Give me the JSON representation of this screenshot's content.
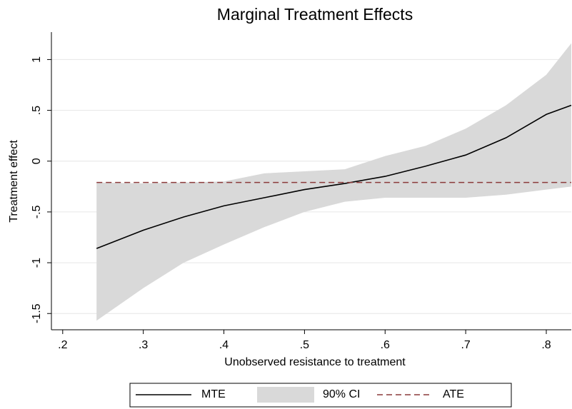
{
  "chart_data": {
    "type": "line",
    "title": "Marginal Treatment Effects",
    "xlabel": "Unobserved resistance to treatment",
    "ylabel": "Treatment effect",
    "x": [
      0.242,
      0.3,
      0.35,
      0.4,
      0.45,
      0.5,
      0.55,
      0.6,
      0.65,
      0.7,
      0.75,
      0.8,
      0.831
    ],
    "series": [
      {
        "name": "MTE",
        "color": "#000000",
        "values": [
          -0.86,
          -0.68,
          -0.55,
          -0.44,
          -0.36,
          -0.28,
          -0.22,
          -0.15,
          -0.05,
          0.06,
          0.23,
          0.46,
          0.55
        ]
      },
      {
        "name": "90% CI",
        "color": "#d9d9d9",
        "lower": [
          -1.57,
          -1.25,
          -1.0,
          -0.82,
          -0.65,
          -0.5,
          -0.4,
          -0.36,
          -0.36,
          -0.36,
          -0.33,
          -0.28,
          -0.25
        ],
        "upper": [
          -0.21,
          -0.22,
          -0.21,
          -0.2,
          -0.12,
          -0.1,
          -0.08,
          0.05,
          0.15,
          0.32,
          0.55,
          0.85,
          1.16
        ]
      },
      {
        "name": "ATE",
        "color": "#8b3a3a",
        "dashed": true,
        "value": -0.21
      }
    ],
    "xlim": [
      0.186,
      0.831
    ],
    "ylim": [
      -1.66,
      1.27
    ],
    "xticks": [
      {
        "value": 0.2,
        "label": ".2"
      },
      {
        "value": 0.3,
        "label": ".3"
      },
      {
        "value": 0.4,
        "label": ".4"
      },
      {
        "value": 0.5,
        "label": ".5"
      },
      {
        "value": 0.6,
        "label": ".6"
      },
      {
        "value": 0.7,
        "label": ".7"
      },
      {
        "value": 0.8,
        "label": ".8"
      }
    ],
    "yticks": [
      {
        "value": -1.5,
        "label": "-1.5"
      },
      -1,
      {
        "value": -0.5,
        "label": "-.5"
      },
      0,
      {
        "value": 0.5,
        "label": ".5"
      },
      1
    ],
    "grid": true
  }
}
